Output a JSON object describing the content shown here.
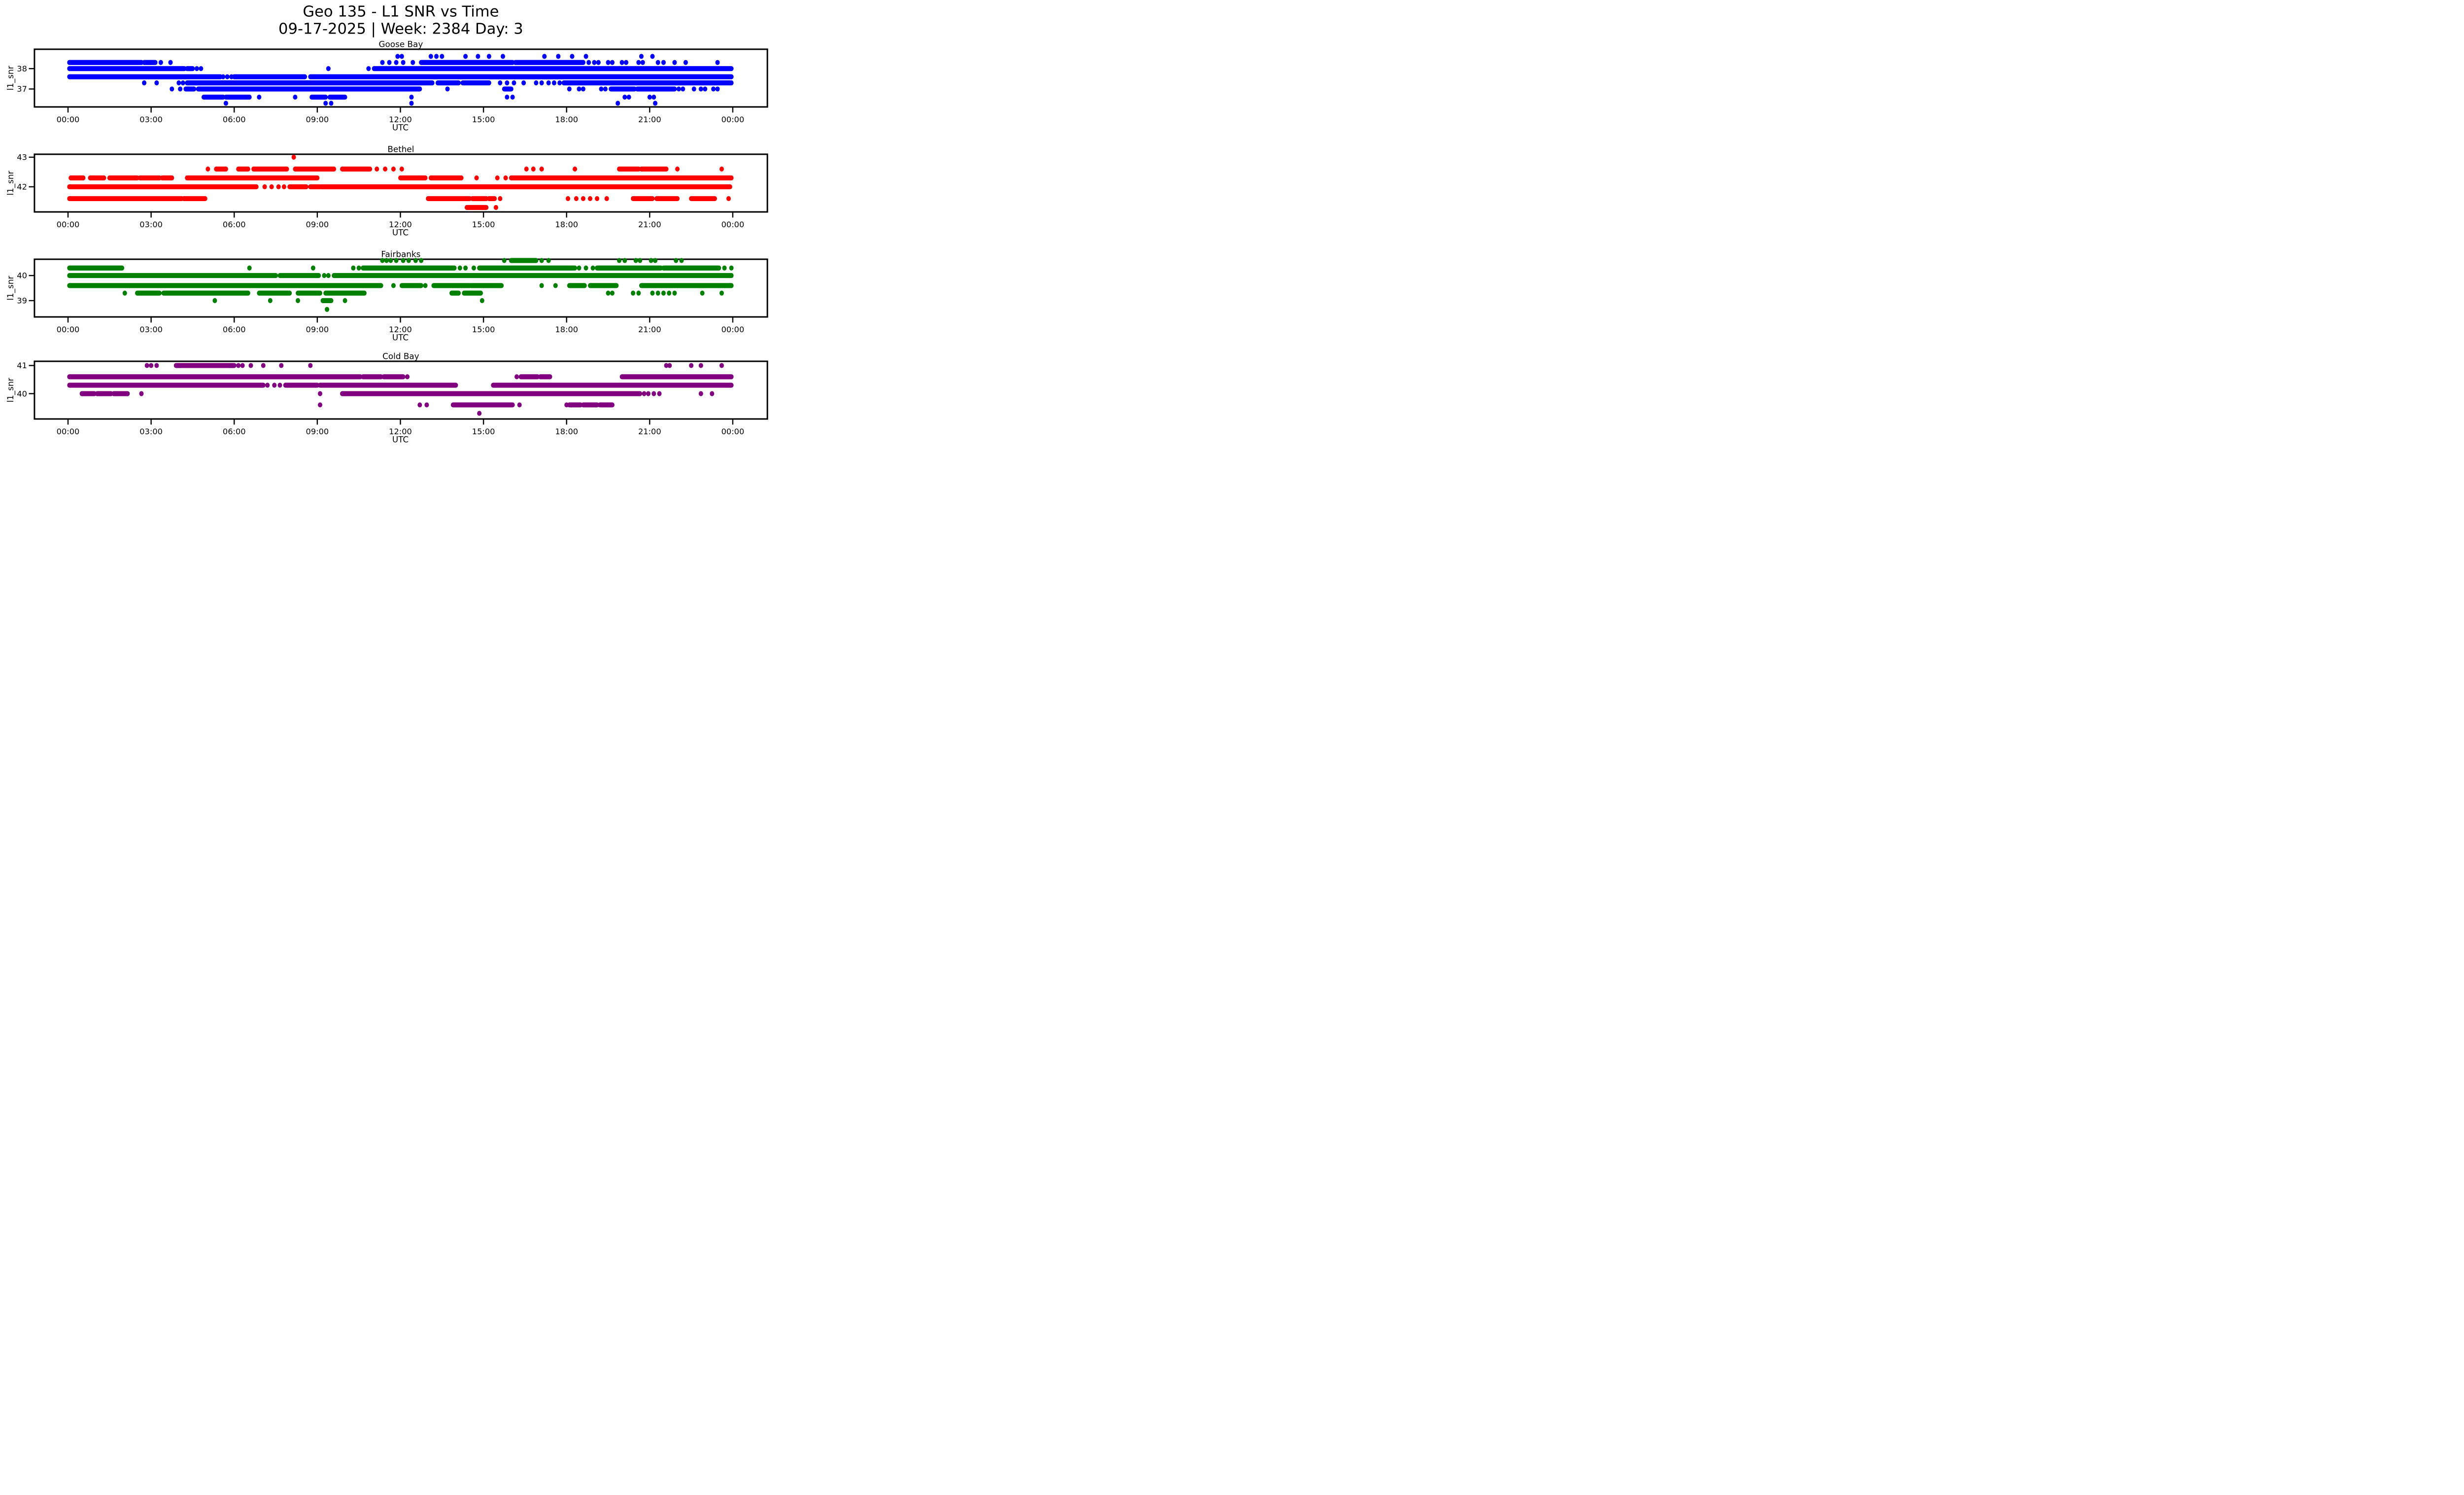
{
  "figure": {
    "suptitle_line1": "Geo 135 - L1 SNR vs Time",
    "suptitle_line2": "09-17-2025 | Week: 2384 Day: 3",
    "background": "#ffffff"
  },
  "chart_data": [
    {
      "type": "scatter",
      "title": "Goose Bay",
      "color": "#0000ff",
      "marker": "circle",
      "xlabel": "UTC",
      "ylabel": "l1_snr",
      "grid": false,
      "legend": "none",
      "x_ticks": [
        "00:00",
        "03:00",
        "06:00",
        "09:00",
        "12:00",
        "15:00",
        "18:00",
        "21:00",
        "00:00"
      ],
      "x_tick_hours": [
        0,
        3,
        6,
        9,
        12,
        15,
        18,
        21,
        24
      ],
      "y_ticks": [
        "38",
        "37"
      ],
      "y_tick_values": [
        38,
        37
      ],
      "ylim": [
        36.12,
        38.95
      ],
      "xlim_hours": [
        -1.2,
        25.25
      ],
      "bands": [
        {
          "snr": 38.6,
          "runs": [],
          "dots": [
            11.9,
            12.05,
            13.1,
            13.3,
            13.5,
            14.35,
            14.8,
            15.2,
            15.7,
            17.2,
            17.7,
            18.2,
            18.7,
            20.7,
            21.1
          ]
        },
        {
          "snr": 38.3,
          "runs": [
            [
              0.05,
              2.65
            ],
            [
              2.75,
              3.15
            ],
            [
              12.75,
              16.05
            ],
            [
              16.15,
              18.6
            ]
          ],
          "dots": [
            3.35,
            3.7,
            11.35,
            11.6,
            11.85,
            12.1,
            12.45,
            18.8,
            19.0,
            19.15,
            19.5,
            19.65,
            20.0,
            20.15,
            20.6,
            20.75,
            21.3,
            21.5,
            21.9,
            22.3,
            23.45
          ]
        },
        {
          "snr": 38.0,
          "runs": [
            [
              0.05,
              4.2
            ],
            [
              4.3,
              4.5
            ],
            [
              11.05,
              23.95
            ]
          ],
          "dots": [
            4.65,
            4.8,
            9.4,
            10.85
          ]
        },
        {
          "snr": 37.6,
          "runs": [
            [
              0.05,
              5.5
            ],
            [
              6.0,
              8.55
            ],
            [
              8.75,
              23.95
            ]
          ],
          "dots": [
            5.6,
            5.75,
            5.9
          ]
        },
        {
          "snr": 37.3,
          "runs": [
            [
              4.3,
              13.15
            ],
            [
              13.35,
              14.1
            ],
            [
              14.25,
              15.2
            ],
            [
              17.9,
              23.95
            ]
          ],
          "dots": [
            2.75,
            3.2,
            4.0,
            4.15,
            15.6,
            15.85,
            16.1,
            16.45,
            16.9,
            17.1,
            17.35,
            17.55,
            17.75
          ]
        },
        {
          "snr": 37.0,
          "runs": [
            [
              4.25,
              4.55
            ],
            [
              4.7,
              12.7
            ],
            [
              15.75,
              16.0
            ],
            [
              19.6,
              20.45
            ],
            [
              20.55,
              21.9
            ]
          ],
          "dots": [
            3.75,
            4.05,
            13.7,
            18.1,
            18.45,
            18.6,
            19.25,
            19.4,
            22.05,
            22.2,
            22.6,
            22.85,
            23.0,
            23.3,
            23.45
          ]
        },
        {
          "snr": 36.6,
          "runs": [
            [
              4.9,
              5.6
            ],
            [
              5.7,
              6.55
            ],
            [
              8.8,
              9.3
            ],
            [
              9.45,
              10.0
            ]
          ],
          "dots": [
            6.9,
            8.2,
            12.4,
            15.85,
            16.05,
            20.1,
            20.25,
            21.0,
            21.15
          ]
        },
        {
          "snr": 36.3,
          "runs": [],
          "dots": [
            5.7,
            9.3,
            9.5,
            12.4,
            19.85,
            21.2
          ]
        }
      ]
    },
    {
      "type": "scatter",
      "title": "Bethel",
      "color": "#ff0000",
      "marker": "circle",
      "xlabel": "UTC",
      "ylabel": "l1_snr",
      "grid": false,
      "legend": "none",
      "x_ticks": [
        "00:00",
        "03:00",
        "06:00",
        "09:00",
        "12:00",
        "15:00",
        "18:00",
        "21:00",
        "00:00"
      ],
      "x_tick_hours": [
        0,
        3,
        6,
        9,
        12,
        15,
        18,
        21,
        24
      ],
      "y_ticks": [
        "43",
        "42"
      ],
      "y_tick_values": [
        43,
        42
      ],
      "ylim": [
        41.15,
        43.1
      ],
      "xlim_hours": [
        -1.2,
        25.25
      ],
      "bands": [
        {
          "snr": 43.0,
          "runs": [],
          "dots": [
            8.15
          ]
        },
        {
          "snr": 42.6,
          "runs": [
            [
              5.35,
              5.7
            ],
            [
              6.15,
              6.5
            ],
            [
              6.7,
              7.9
            ],
            [
              8.2,
              9.6
            ],
            [
              9.9,
              10.9
            ],
            [
              19.9,
              20.6
            ],
            [
              20.7,
              21.6
            ]
          ],
          "dots": [
            5.05,
            11.15,
            11.45,
            11.75,
            12.05,
            16.55,
            16.8,
            17.1,
            18.3,
            22.0,
            23.6
          ]
        },
        {
          "snr": 42.3,
          "runs": [
            [
              0.1,
              0.55
            ],
            [
              0.8,
              1.3
            ],
            [
              1.5,
              2.5
            ],
            [
              2.6,
              3.3
            ],
            [
              3.4,
              3.75
            ],
            [
              4.3,
              9.0
            ],
            [
              12.0,
              12.9
            ],
            [
              13.1,
              14.2
            ],
            [
              16.0,
              23.95
            ]
          ],
          "dots": [
            14.75,
            15.5,
            15.8
          ]
        },
        {
          "snr": 42.0,
          "runs": [
            [
              0.05,
              6.8
            ],
            [
              8.0,
              8.6
            ],
            [
              8.75,
              9.1
            ],
            [
              9.15,
              23.9
            ]
          ],
          "dots": [
            7.1,
            7.35,
            7.6,
            7.8
          ]
        },
        {
          "snr": 41.6,
          "runs": [
            [
              0.05,
              4.1
            ],
            [
              4.18,
              4.95
            ],
            [
              13.0,
              14.5
            ],
            [
              14.6,
              15.1
            ],
            [
              15.2,
              15.4
            ],
            [
              20.4,
              21.1
            ],
            [
              21.25,
              22.0
            ],
            [
              22.5,
              23.35
            ]
          ],
          "dots": [
            15.6,
            18.05,
            18.35,
            18.6,
            18.85,
            19.1,
            19.45,
            23.85
          ]
        },
        {
          "snr": 41.3,
          "runs": [
            [
              14.4,
              15.1
            ]
          ],
          "dots": [
            15.45
          ]
        }
      ]
    },
    {
      "type": "scatter",
      "title": "Fairbanks",
      "color": "#008000",
      "marker": "circle",
      "xlabel": "UTC",
      "ylabel": "l1_snr",
      "grid": false,
      "legend": "none",
      "x_ticks": [
        "00:00",
        "03:00",
        "06:00",
        "09:00",
        "12:00",
        "15:00",
        "18:00",
        "21:00",
        "00:00"
      ],
      "x_tick_hours": [
        0,
        3,
        6,
        9,
        12,
        15,
        18,
        21,
        24
      ],
      "y_ticks": [
        "40",
        "39"
      ],
      "y_tick_values": [
        40,
        39
      ],
      "ylim": [
        38.35,
        40.65
      ],
      "xlim_hours": [
        -1.2,
        25.25
      ],
      "bands": [
        {
          "snr": 40.6,
          "runs": [
            [
              16.0,
              16.9
            ]
          ],
          "dots": [
            11.35,
            11.5,
            11.65,
            11.85,
            12.1,
            12.3,
            12.55,
            12.75,
            15.75,
            17.1,
            17.35,
            19.9,
            20.1,
            20.5,
            20.65,
            21.05,
            21.2,
            21.95,
            22.15
          ]
        },
        {
          "snr": 40.3,
          "runs": [
            [
              0.05,
              1.95
            ],
            [
              10.65,
              13.95
            ],
            [
              14.85,
              18.3
            ],
            [
              19.1,
              21.4
            ],
            [
              21.5,
              23.5
            ]
          ],
          "dots": [
            6.55,
            8.85,
            10.3,
            10.5,
            14.15,
            14.35,
            14.65,
            18.45,
            18.7,
            18.95,
            23.7,
            23.95
          ]
        },
        {
          "snr": 40.0,
          "runs": [
            [
              0.05,
              7.5
            ],
            [
              7.65,
              9.05
            ],
            [
              9.6,
              23.95
            ]
          ],
          "dots": [
            9.25,
            9.4
          ]
        },
        {
          "snr": 39.6,
          "runs": [
            [
              0.05,
              11.3
            ],
            [
              12.05,
              12.75
            ],
            [
              13.2,
              14.5
            ],
            [
              14.55,
              15.65
            ],
            [
              18.1,
              18.65
            ],
            [
              18.85,
              19.8
            ],
            [
              20.7,
              23.95
            ]
          ],
          "dots": [
            11.75,
            12.9,
            17.1,
            17.6
          ]
        },
        {
          "snr": 39.3,
          "runs": [
            [
              2.5,
              3.3
            ],
            [
              3.45,
              6.5
            ],
            [
              6.9,
              8.0
            ],
            [
              8.3,
              9.1
            ],
            [
              9.3,
              10.7
            ],
            [
              13.85,
              14.1
            ],
            [
              14.3,
              14.9
            ]
          ],
          "dots": [
            2.05,
            19.5,
            19.65,
            20.4,
            20.6,
            21.1,
            21.3,
            21.5,
            21.7,
            21.9,
            22.9,
            23.6
          ]
        },
        {
          "snr": 39.0,
          "runs": [
            [
              9.2,
              9.5
            ]
          ],
          "dots": [
            5.3,
            7.3,
            8.3,
            10.0,
            14.95
          ]
        },
        {
          "snr": 38.65,
          "runs": [],
          "dots": [
            9.35
          ]
        }
      ]
    },
    {
      "type": "scatter",
      "title": "Cold Bay",
      "color": "#800080",
      "marker": "circle",
      "xlabel": "UTC",
      "ylabel": "l1_snr",
      "grid": false,
      "legend": "none",
      "x_ticks": [
        "00:00",
        "03:00",
        "06:00",
        "09:00",
        "12:00",
        "15:00",
        "18:00",
        "21:00",
        "00:00"
      ],
      "x_tick_hours": [
        0,
        3,
        6,
        9,
        12,
        15,
        18,
        21,
        24
      ],
      "y_ticks": [
        "41",
        "40"
      ],
      "y_tick_values": [
        41,
        40
      ],
      "ylim": [
        39.1,
        41.15
      ],
      "xlim_hours": [
        -1.2,
        25.25
      ],
      "bands": [
        {
          "snr": 41.0,
          "runs": [
            [
              3.9,
              6.0
            ]
          ],
          "dots": [
            2.85,
            3.0,
            3.2,
            6.15,
            6.3,
            6.6,
            7.05,
            7.7,
            8.75,
            21.6,
            21.72,
            22.5,
            22.85,
            23.6
          ]
        },
        {
          "snr": 40.6,
          "runs": [
            [
              0.05,
              10.55
            ],
            [
              10.65,
              11.3
            ],
            [
              11.4,
              12.1
            ],
            [
              16.35,
              16.95
            ],
            [
              17.05,
              17.4
            ],
            [
              20.0,
              23.95
            ]
          ],
          "dots": [
            12.25,
            16.2
          ]
        },
        {
          "snr": 40.3,
          "runs": [
            [
              0.05,
              7.05
            ],
            [
              7.85,
              9.0
            ],
            [
              9.1,
              14.0
            ],
            [
              15.35,
              23.95
            ]
          ],
          "dots": [
            7.2,
            7.45,
            7.65
          ]
        },
        {
          "snr": 40.0,
          "runs": [
            [
              0.5,
              0.95
            ],
            [
              1.05,
              1.55
            ],
            [
              1.65,
              2.15
            ],
            [
              9.9,
              20.65
            ]
          ],
          "dots": [
            2.65,
            9.1,
            20.8,
            20.95,
            21.15,
            21.35,
            22.85,
            23.25
          ]
        },
        {
          "snr": 39.6,
          "runs": [
            [
              13.9,
              16.05
            ],
            [
              18.1,
              18.5
            ],
            [
              18.6,
              19.1
            ],
            [
              19.2,
              19.65
            ]
          ],
          "dots": [
            9.1,
            12.7,
            12.95,
            16.3,
            18.0
          ]
        },
        {
          "snr": 39.3,
          "runs": [],
          "dots": [
            14.85
          ]
        }
      ]
    }
  ]
}
